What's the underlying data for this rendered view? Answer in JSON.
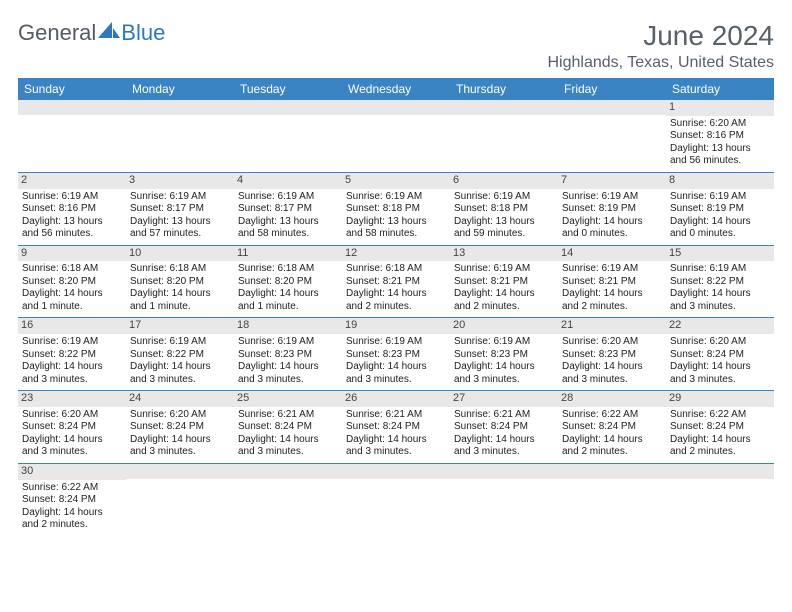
{
  "logo": {
    "text1": "General",
    "text2": "Blue"
  },
  "title": "June 2024",
  "location": "Highlands, Texas, United States",
  "header_bg": "#3b84c4",
  "dayNames": [
    "Sunday",
    "Monday",
    "Tuesday",
    "Wednesday",
    "Thursday",
    "Friday",
    "Saturday"
  ],
  "weeks": [
    [
      {
        "n": "",
        "sr": "",
        "ss": "",
        "dl": ""
      },
      {
        "n": "",
        "sr": "",
        "ss": "",
        "dl": ""
      },
      {
        "n": "",
        "sr": "",
        "ss": "",
        "dl": ""
      },
      {
        "n": "",
        "sr": "",
        "ss": "",
        "dl": ""
      },
      {
        "n": "",
        "sr": "",
        "ss": "",
        "dl": ""
      },
      {
        "n": "",
        "sr": "",
        "ss": "",
        "dl": ""
      },
      {
        "n": "1",
        "sr": "Sunrise: 6:20 AM",
        "ss": "Sunset: 8:16 PM",
        "dl": "Daylight: 13 hours and 56 minutes."
      }
    ],
    [
      {
        "n": "2",
        "sr": "Sunrise: 6:19 AM",
        "ss": "Sunset: 8:16 PM",
        "dl": "Daylight: 13 hours and 56 minutes."
      },
      {
        "n": "3",
        "sr": "Sunrise: 6:19 AM",
        "ss": "Sunset: 8:17 PM",
        "dl": "Daylight: 13 hours and 57 minutes."
      },
      {
        "n": "4",
        "sr": "Sunrise: 6:19 AM",
        "ss": "Sunset: 8:17 PM",
        "dl": "Daylight: 13 hours and 58 minutes."
      },
      {
        "n": "5",
        "sr": "Sunrise: 6:19 AM",
        "ss": "Sunset: 8:18 PM",
        "dl": "Daylight: 13 hours and 58 minutes."
      },
      {
        "n": "6",
        "sr": "Sunrise: 6:19 AM",
        "ss": "Sunset: 8:18 PM",
        "dl": "Daylight: 13 hours and 59 minutes."
      },
      {
        "n": "7",
        "sr": "Sunrise: 6:19 AM",
        "ss": "Sunset: 8:19 PM",
        "dl": "Daylight: 14 hours and 0 minutes."
      },
      {
        "n": "8",
        "sr": "Sunrise: 6:19 AM",
        "ss": "Sunset: 8:19 PM",
        "dl": "Daylight: 14 hours and 0 minutes."
      }
    ],
    [
      {
        "n": "9",
        "sr": "Sunrise: 6:18 AM",
        "ss": "Sunset: 8:20 PM",
        "dl": "Daylight: 14 hours and 1 minute."
      },
      {
        "n": "10",
        "sr": "Sunrise: 6:18 AM",
        "ss": "Sunset: 8:20 PM",
        "dl": "Daylight: 14 hours and 1 minute."
      },
      {
        "n": "11",
        "sr": "Sunrise: 6:18 AM",
        "ss": "Sunset: 8:20 PM",
        "dl": "Daylight: 14 hours and 1 minute."
      },
      {
        "n": "12",
        "sr": "Sunrise: 6:18 AM",
        "ss": "Sunset: 8:21 PM",
        "dl": "Daylight: 14 hours and 2 minutes."
      },
      {
        "n": "13",
        "sr": "Sunrise: 6:19 AM",
        "ss": "Sunset: 8:21 PM",
        "dl": "Daylight: 14 hours and 2 minutes."
      },
      {
        "n": "14",
        "sr": "Sunrise: 6:19 AM",
        "ss": "Sunset: 8:21 PM",
        "dl": "Daylight: 14 hours and 2 minutes."
      },
      {
        "n": "15",
        "sr": "Sunrise: 6:19 AM",
        "ss": "Sunset: 8:22 PM",
        "dl": "Daylight: 14 hours and 3 minutes."
      }
    ],
    [
      {
        "n": "16",
        "sr": "Sunrise: 6:19 AM",
        "ss": "Sunset: 8:22 PM",
        "dl": "Daylight: 14 hours and 3 minutes."
      },
      {
        "n": "17",
        "sr": "Sunrise: 6:19 AM",
        "ss": "Sunset: 8:22 PM",
        "dl": "Daylight: 14 hours and 3 minutes."
      },
      {
        "n": "18",
        "sr": "Sunrise: 6:19 AM",
        "ss": "Sunset: 8:23 PM",
        "dl": "Daylight: 14 hours and 3 minutes."
      },
      {
        "n": "19",
        "sr": "Sunrise: 6:19 AM",
        "ss": "Sunset: 8:23 PM",
        "dl": "Daylight: 14 hours and 3 minutes."
      },
      {
        "n": "20",
        "sr": "Sunrise: 6:19 AM",
        "ss": "Sunset: 8:23 PM",
        "dl": "Daylight: 14 hours and 3 minutes."
      },
      {
        "n": "21",
        "sr": "Sunrise: 6:20 AM",
        "ss": "Sunset: 8:23 PM",
        "dl": "Daylight: 14 hours and 3 minutes."
      },
      {
        "n": "22",
        "sr": "Sunrise: 6:20 AM",
        "ss": "Sunset: 8:24 PM",
        "dl": "Daylight: 14 hours and 3 minutes."
      }
    ],
    [
      {
        "n": "23",
        "sr": "Sunrise: 6:20 AM",
        "ss": "Sunset: 8:24 PM",
        "dl": "Daylight: 14 hours and 3 minutes."
      },
      {
        "n": "24",
        "sr": "Sunrise: 6:20 AM",
        "ss": "Sunset: 8:24 PM",
        "dl": "Daylight: 14 hours and 3 minutes."
      },
      {
        "n": "25",
        "sr": "Sunrise: 6:21 AM",
        "ss": "Sunset: 8:24 PM",
        "dl": "Daylight: 14 hours and 3 minutes."
      },
      {
        "n": "26",
        "sr": "Sunrise: 6:21 AM",
        "ss": "Sunset: 8:24 PM",
        "dl": "Daylight: 14 hours and 3 minutes."
      },
      {
        "n": "27",
        "sr": "Sunrise: 6:21 AM",
        "ss": "Sunset: 8:24 PM",
        "dl": "Daylight: 14 hours and 3 minutes."
      },
      {
        "n": "28",
        "sr": "Sunrise: 6:22 AM",
        "ss": "Sunset: 8:24 PM",
        "dl": "Daylight: 14 hours and 2 minutes."
      },
      {
        "n": "29",
        "sr": "Sunrise: 6:22 AM",
        "ss": "Sunset: 8:24 PM",
        "dl": "Daylight: 14 hours and 2 minutes."
      }
    ],
    [
      {
        "n": "30",
        "sr": "Sunrise: 6:22 AM",
        "ss": "Sunset: 8:24 PM",
        "dl": "Daylight: 14 hours and 2 minutes."
      },
      {
        "n": "",
        "sr": "",
        "ss": "",
        "dl": ""
      },
      {
        "n": "",
        "sr": "",
        "ss": "",
        "dl": ""
      },
      {
        "n": "",
        "sr": "",
        "ss": "",
        "dl": ""
      },
      {
        "n": "",
        "sr": "",
        "ss": "",
        "dl": ""
      },
      {
        "n": "",
        "sr": "",
        "ss": "",
        "dl": ""
      },
      {
        "n": "",
        "sr": "",
        "ss": "",
        "dl": ""
      }
    ]
  ]
}
